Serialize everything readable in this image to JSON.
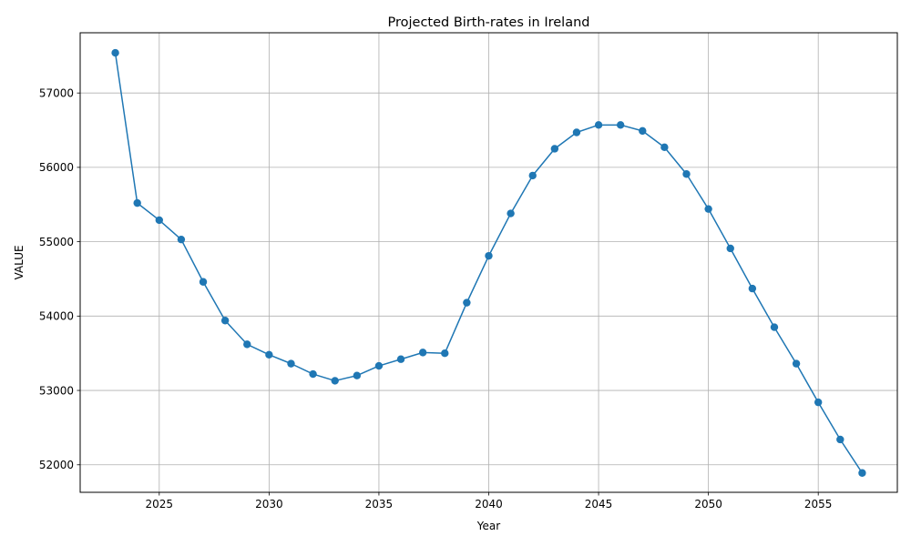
{
  "chart_data": {
    "type": "line",
    "title": "Projected Birth-rates in Ireland",
    "xlabel": "Year",
    "ylabel": "VALUE",
    "xlim": [
      2021.4,
      2058.6
    ],
    "ylim": [
      51630,
      57810
    ],
    "xticks": [
      2025,
      2030,
      2035,
      2040,
      2045,
      2050,
      2055
    ],
    "yticks": [
      52000,
      53000,
      54000,
      55000,
      56000,
      57000
    ],
    "grid": true,
    "color": "#1f77b4",
    "marker": "circle",
    "x": [
      2023,
      2024,
      2025,
      2026,
      2027,
      2028,
      2029,
      2030,
      2031,
      2032,
      2033,
      2034,
      2035,
      2036,
      2037,
      2038,
      2039,
      2040,
      2041,
      2042,
      2043,
      2044,
      2045,
      2046,
      2047,
      2048,
      2049,
      2050,
      2051,
      2052,
      2053,
      2054,
      2055,
      2056,
      2057
    ],
    "y": [
      57540,
      55520,
      55290,
      55030,
      54460,
      53940,
      53620,
      53480,
      53360,
      53220,
      53130,
      53200,
      53330,
      53420,
      53510,
      53500,
      54180,
      54810,
      55380,
      55890,
      56250,
      56470,
      56570,
      56570,
      56490,
      56270,
      55910,
      55440,
      54910,
      54370,
      53850,
      53360,
      52840,
      52340,
      51890
    ]
  }
}
